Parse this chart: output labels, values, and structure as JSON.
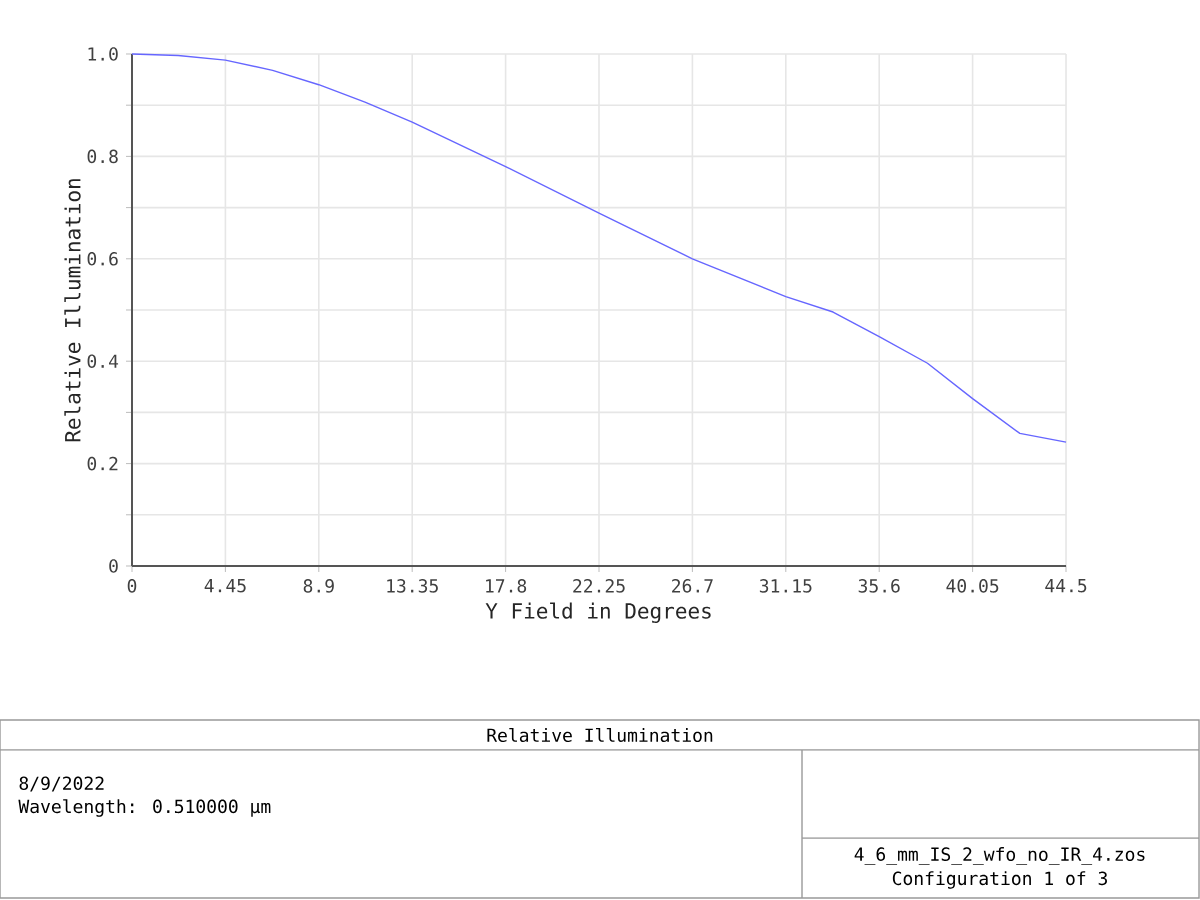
{
  "chart_data": {
    "type": "line",
    "title": "Relative Illumination",
    "xlabel": "Y Field in Degrees",
    "ylabel": "Relative Illumination",
    "x": [
      0,
      2.2,
      4.45,
      6.7,
      8.9,
      11.1,
      13.35,
      17.8,
      22.25,
      26.7,
      31.15,
      33.4,
      35.6,
      37.9,
      40.05,
      42.3,
      44.5
    ],
    "series": [
      {
        "color": "#6666ff",
        "values": [
          1.0,
          0.997,
          0.988,
          0.968,
          0.94,
          0.906,
          0.867,
          0.78,
          0.689,
          0.6,
          0.526,
          0.496,
          0.448,
          0.396,
          0.327,
          0.259,
          0.242
        ]
      }
    ],
    "xlim": [
      0,
      44.5
    ],
    "ylim": [
      0,
      1
    ],
    "xticks": [
      0,
      4.45,
      8.9,
      13.35,
      17.8,
      22.25,
      26.7,
      31.15,
      35.6,
      40.05,
      44.5
    ],
    "yticks": [
      0,
      {
        "value": 0.1,
        "label": null
      },
      0.2,
      {
        "value": 0.3,
        "label": null
      },
      0.4,
      {
        "value": 0.5,
        "label": null
      },
      0.6,
      {
        "value": 0.7,
        "label": null
      },
      0.8,
      {
        "value": 0.9,
        "label": null
      },
      {
        "value": 1,
        "label": "1.0"
      }
    ],
    "grid": true,
    "annotations": [
      "8/9/2022",
      "Wavelength: 0.510000 µm",
      "4_6_mm_IS_2_wfo_no_IR_4.zos",
      "Configuration 1 of 3"
    ]
  }
}
